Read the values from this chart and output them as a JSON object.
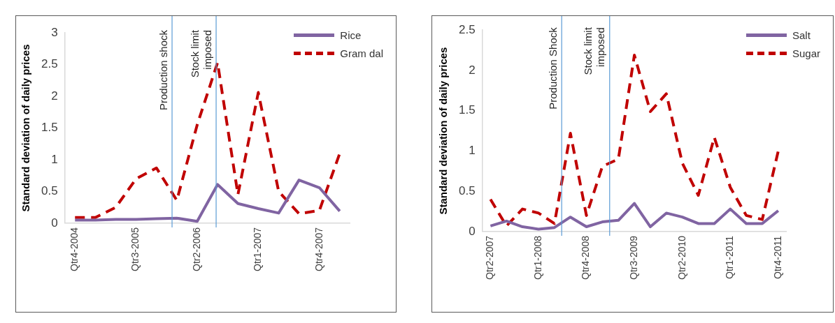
{
  "chart_data": [
    {
      "type": "line",
      "ylabel": "Standard deviation of daily prices",
      "x": [
        "2004-10",
        "2005-01",
        "2005-04",
        "2005-07",
        "2005-10",
        "2006-01",
        "2006-04",
        "2006-07",
        "2006-10",
        "2007-01",
        "2007-04",
        "2007-07",
        "2007-10",
        "2008-01"
      ],
      "series": [
        {
          "name": "Rice",
          "color": "#8064a2",
          "line_style": "solid",
          "values": [
            0.05,
            0.05,
            0.06,
            0.06,
            0.07,
            0.08,
            0.03,
            0.61,
            0.31,
            0.23,
            0.16,
            0.68,
            0.56,
            0.19
          ]
        },
        {
          "name": "Gram dal",
          "color": "#c00000",
          "line_style": "dashed",
          "values": [
            0.09,
            0.09,
            0.25,
            0.7,
            0.87,
            0.36,
            1.55,
            2.53,
            0.45,
            2.06,
            0.5,
            0.15,
            0.2,
            1.1
          ]
        }
      ],
      "xlim": [
        "2004-08-16",
        "2008-02-15"
      ],
      "xticks": [
        {
          "value": "2004-10",
          "label": "Qtr4-2004"
        },
        {
          "value": "2005-07",
          "label": "Qtr3-2005"
        },
        {
          "value": "2006-04",
          "label": "Qtr2-2006"
        },
        {
          "value": "2007-01",
          "label": "Qtr1-2007"
        },
        {
          "value": "2007-10",
          "label": "Qtr4-2007"
        }
      ],
      "ylim": [
        0,
        3
      ],
      "yticks": [
        0,
        0.5,
        1,
        1.5,
        2,
        2.5,
        3
      ],
      "grid": false,
      "legend": "top right",
      "ref_lines": [
        {
          "axis": "x",
          "value": "2005-12-10",
          "label": "Production shock",
          "color": "#5b9bd5"
        },
        {
          "axis": "x",
          "value": "2006-06-25",
          "label": "Stock limit imposed",
          "color": "#5b9bd5"
        }
      ]
    },
    {
      "type": "line",
      "ylabel": "Standard deviation of daily prices",
      "x": [
        "2007-04",
        "2007-07",
        "2007-10",
        "2008-01",
        "2008-04",
        "2008-07",
        "2008-10",
        "2009-01",
        "2009-04",
        "2009-07",
        "2009-10",
        "2010-01",
        "2010-04",
        "2010-07",
        "2010-10",
        "2011-01",
        "2011-04",
        "2011-07",
        "2011-10"
      ],
      "series": [
        {
          "name": "Salt",
          "color": "#8064a2",
          "line_style": "solid",
          "values": [
            0.07,
            0.13,
            0.06,
            0.03,
            0.05,
            0.18,
            0.06,
            0.12,
            0.14,
            0.35,
            0.06,
            0.23,
            0.18,
            0.1,
            0.1,
            0.28,
            0.1,
            0.1,
            0.26
          ]
        },
        {
          "name": "Sugar",
          "color": "#c00000",
          "line_style": "dashed",
          "values": [
            0.4,
            0.07,
            0.28,
            0.23,
            0.1,
            1.22,
            0.2,
            0.81,
            0.9,
            2.19,
            1.49,
            1.71,
            0.85,
            0.45,
            1.17,
            0.55,
            0.2,
            0.15,
            1.0
          ]
        }
      ],
      "xlim": [
        "2007-02-15",
        "2011-11-15"
      ],
      "xticks": [
        {
          "value": "2007-04",
          "label": "Qtr2-2007"
        },
        {
          "value": "2008-01",
          "label": "Qtr1-2008"
        },
        {
          "value": "2008-10",
          "label": "Qtr4-2008"
        },
        {
          "value": "2009-07",
          "label": "Qtr3-2009"
        },
        {
          "value": "2010-04",
          "label": "Qtr2-2010"
        },
        {
          "value": "2011-01",
          "label": "Qtr1-2011"
        },
        {
          "value": "2011-10",
          "label": "Qtr4-2011"
        }
      ],
      "ylim": [
        0,
        2.5
      ],
      "yticks": [
        0,
        0.5,
        1,
        1.5,
        2,
        2.5
      ],
      "grid": false,
      "legend": "top right",
      "ref_lines": [
        {
          "axis": "x",
          "value": "2008-05-12",
          "label": "Production Shock",
          "color": "#5b9bd5"
        },
        {
          "axis": "x",
          "value": "2009-02-12",
          "label": "Stock limit imposed",
          "color": "#5b9bd5"
        }
      ]
    }
  ]
}
